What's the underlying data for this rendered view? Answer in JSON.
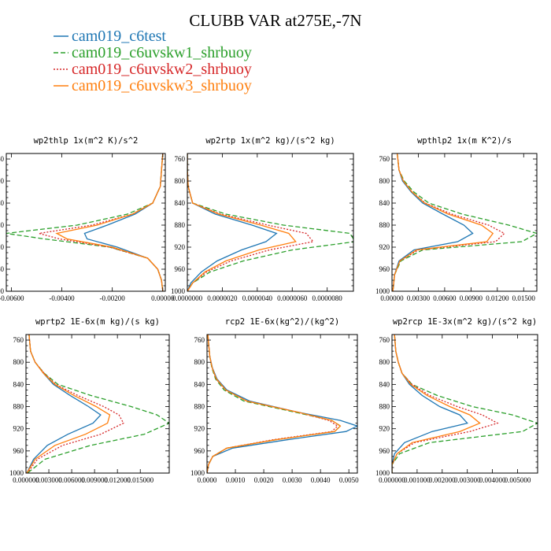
{
  "figure": {
    "title": "CLUBB VAR at275E,-7N",
    "legend": [
      {
        "label": "cam019_c6test",
        "color": "#1f77b4",
        "dash": "solid"
      },
      {
        "label": "cam019_c6uvskw1_shrbuoy",
        "color": "#2ca02c",
        "dash": "dashed"
      },
      {
        "label": "cam019_c6uvskw2_shrbuoy",
        "color": "#d62728",
        "dash": "dotted"
      },
      {
        "label": "cam019_c6uvskw3_shrbuoy",
        "color": "#ff7f0e",
        "dash": "solid"
      }
    ]
  },
  "chart_data": [
    {
      "type": "line",
      "title": "wp2thlp  1x(m^2 K)/s^2",
      "xlim": [
        -0.0062,
        0.0001
      ],
      "ylim": [
        1000,
        750
      ],
      "y_ticks": [
        760,
        800,
        840,
        880,
        920,
        960,
        1000
      ],
      "y_tick_labels": [
        "760",
        "800",
        "840",
        "880",
        "920",
        "960",
        "1000"
      ],
      "x_ticks": [
        -0.006,
        -0.004,
        -0.002,
        0.0
      ],
      "x_tick_labels": [
        "-0.00600",
        "-0.00400",
        "-0.00200",
        "0.00000"
      ],
      "y": [
        750,
        780,
        810,
        840,
        860,
        880,
        895,
        905,
        920,
        940,
        960,
        980,
        1000
      ],
      "series": [
        {
          "x": [
            0.0,
            -5e-05,
            -0.0001,
            -0.0004,
            -0.0011,
            -0.0022,
            -0.0031,
            -0.003,
            -0.0018,
            -0.0006,
            -0.0002,
            -5e-05,
            0.0
          ]
        },
        {
          "x": [
            0.0,
            -5e-05,
            -0.0001,
            -0.0004,
            -0.0014,
            -0.0034,
            -0.0062,
            -0.0047,
            -0.0021,
            -0.0006,
            -0.0002,
            -5e-05,
            0.0
          ]
        },
        {
          "x": [
            0.0,
            -5e-05,
            -0.0001,
            -0.0004,
            -0.0012,
            -0.0028,
            -0.0049,
            -0.0041,
            -0.0021,
            -0.0006,
            -0.0002,
            -5e-05,
            0.0
          ]
        },
        {
          "x": [
            0.0,
            -5e-05,
            -0.0001,
            -0.0004,
            -0.0012,
            -0.0026,
            -0.0042,
            -0.0038,
            -0.002,
            -0.0006,
            -0.0002,
            -5e-05,
            0.0
          ]
        }
      ]
    },
    {
      "type": "line",
      "title": "wp2rtp  1x(m^2 kg)/(s^2 kg)",
      "xlim": [
        0.0,
        9.5e-06
      ],
      "ylim": [
        1000,
        750
      ],
      "y_ticks": [
        760,
        800,
        840,
        880,
        920,
        960,
        1000
      ],
      "y_tick_labels": [
        "760",
        "800",
        "840",
        "880",
        "920",
        "960",
        "1000"
      ],
      "x_ticks": [
        0.0,
        2e-06,
        4e-06,
        6e-06,
        8e-06
      ],
      "x_tick_labels": [
        "0.0000000",
        "0.0000020",
        "0.0000040",
        "0.0000060",
        "0.0000080"
      ],
      "y": [
        750,
        780,
        810,
        840,
        860,
        880,
        895,
        910,
        925,
        945,
        965,
        985,
        1000
      ],
      "series": [
        {
          "x": [
            0.0,
            0.0,
            5e-08,
            3e-07,
            1.6e-06,
            3.7e-06,
            5.1e-06,
            4.5e-06,
            3.1e-06,
            1.7e-06,
            8e-07,
            2e-07,
            0.0
          ]
        },
        {
          "x": [
            0.0,
            0.0,
            5e-08,
            3e-07,
            2.2e-06,
            5.5e-06,
            9.3e-06,
            9.6e-06,
            6e-06,
            3.2e-06,
            1.3e-06,
            3e-07,
            0.0
          ]
        },
        {
          "x": [
            0.0,
            0.0,
            5e-08,
            3e-07,
            1.9e-06,
            4.6e-06,
            6.8e-06,
            7.2e-06,
            4.7e-06,
            2.5e-06,
            1.1e-06,
            3e-07,
            0.0
          ]
        },
        {
          "x": [
            0.0,
            0.0,
            5e-08,
            3e-07,
            1.8e-06,
            4.2e-06,
            5.8e-06,
            6.2e-06,
            4.1e-06,
            2.2e-06,
            1e-06,
            3e-07,
            0.0
          ]
        }
      ]
    },
    {
      "type": "line",
      "title": "wpthlp2  1x(m K^2)/s",
      "xlim": [
        0.0,
        0.0165
      ],
      "ylim": [
        1000,
        750
      ],
      "y_ticks": [
        760,
        800,
        840,
        880,
        920,
        960,
        1000
      ],
      "y_tick_labels": [
        "760",
        "800",
        "840",
        "880",
        "920",
        "960",
        "1000"
      ],
      "x_ticks": [
        0.0,
        0.003,
        0.006,
        0.009,
        0.012,
        0.015
      ],
      "x_tick_labels": [
        "0.00000",
        "0.00300",
        "0.00600",
        "0.00900",
        "0.01200",
        "0.01500"
      ],
      "y": [
        750,
        780,
        800,
        820,
        840,
        860,
        880,
        895,
        910,
        925,
        945,
        970,
        1000
      ],
      "series": [
        {
          "x": [
            0.0006,
            0.0008,
            0.0012,
            0.0022,
            0.0035,
            0.0058,
            0.0082,
            0.0092,
            0.0075,
            0.0025,
            0.0008,
            0.0003,
            0.0001
          ]
        },
        {
          "x": [
            0.0006,
            0.0008,
            0.0014,
            0.0025,
            0.0042,
            0.008,
            0.0133,
            0.0165,
            0.0148,
            0.0035,
            0.001,
            0.0003,
            0.0001
          ]
        },
        {
          "x": [
            0.0006,
            0.0008,
            0.0013,
            0.0023,
            0.0038,
            0.0068,
            0.011,
            0.0128,
            0.0118,
            0.003,
            0.0009,
            0.0003,
            0.0001
          ]
        },
        {
          "x": [
            0.0006,
            0.0008,
            0.0013,
            0.0023,
            0.0037,
            0.0064,
            0.0102,
            0.0115,
            0.0108,
            0.0028,
            0.0009,
            0.0003,
            0.0001
          ]
        }
      ]
    },
    {
      "type": "line",
      "title": "wprtp2  1E-6x(m kg)/(s kg)",
      "xlim": [
        0.0,
        0.0188
      ],
      "ylim": [
        1000,
        750
      ],
      "y_ticks": [
        760,
        800,
        840,
        880,
        920,
        960,
        1000
      ],
      "y_tick_labels": [
        "760",
        "800",
        "840",
        "880",
        "920",
        "960",
        "1000"
      ],
      "x_ticks": [
        0.0,
        0.003,
        0.006,
        0.009,
        0.012,
        0.015
      ],
      "x_tick_labels": [
        "0.000000",
        "0.003000",
        "0.006000",
        "0.009000",
        "0.012000",
        "0.015000"
      ],
      "y": [
        750,
        780,
        800,
        820,
        840,
        860,
        880,
        895,
        910,
        930,
        950,
        975,
        1000
      ],
      "series": [
        {
          "x": [
            0.0004,
            0.0006,
            0.0012,
            0.0023,
            0.0036,
            0.0058,
            0.0082,
            0.0098,
            0.0088,
            0.0055,
            0.0028,
            0.001,
            0.0001
          ]
        },
        {
          "x": [
            0.0004,
            0.0006,
            0.0012,
            0.0024,
            0.0042,
            0.0085,
            0.0138,
            0.0172,
            0.0188,
            0.0155,
            0.0085,
            0.0025,
            0.0002
          ]
        },
        {
          "x": [
            0.0004,
            0.0006,
            0.0012,
            0.0024,
            0.0039,
            0.0068,
            0.0102,
            0.0122,
            0.0128,
            0.0098,
            0.0048,
            0.0015,
            0.0002
          ]
        },
        {
          "x": [
            0.0004,
            0.0006,
            0.0012,
            0.0023,
            0.0038,
            0.0063,
            0.0092,
            0.011,
            0.0107,
            0.0078,
            0.0038,
            0.0012,
            0.0001
          ]
        }
      ]
    },
    {
      "type": "line",
      "title": "rcp2  1E-6x(kg^2)/(kg^2)",
      "xlim": [
        0.0,
        0.0053
      ],
      "ylim": [
        1000,
        750
      ],
      "y_ticks": [
        760,
        800,
        840,
        880,
        920,
        960,
        1000
      ],
      "y_tick_labels": [
        "760",
        "800",
        "840",
        "880",
        "920",
        "960",
        "1000"
      ],
      "x_ticks": [
        0.0,
        0.001,
        0.002,
        0.003,
        0.004,
        0.005
      ],
      "x_tick_labels": [
        "0.0000",
        "0.0010",
        "0.0020",
        "0.0030",
        "0.0040",
        "0.0050"
      ],
      "y": [
        750,
        770,
        790,
        810,
        830,
        850,
        870,
        890,
        905,
        915,
        925,
        940,
        955,
        970,
        985,
        1000
      ],
      "series": [
        {
          "x": [
            3e-05,
            6e-05,
            0.0001,
            0.00019,
            0.00035,
            0.0007,
            0.0015,
            0.0032,
            0.0047,
            0.0053,
            0.0049,
            0.0028,
            0.0009,
            0.0002,
            5e-05,
            0.0
          ]
        },
        {
          "x": [
            3e-05,
            6e-05,
            0.0001,
            0.00017,
            0.0003,
            0.0006,
            0.0013,
            0.0031,
            0.0044,
            0.0047,
            0.0045,
            0.0024,
            0.0007,
            0.0002,
            5e-05,
            0.0
          ]
        },
        {
          "x": [
            3e-05,
            6e-05,
            0.0001,
            0.00018,
            0.00032,
            0.00065,
            0.0014,
            0.0032,
            0.0043,
            0.0046,
            0.0044,
            0.0023,
            0.0007,
            0.0002,
            5e-05,
            0.0
          ]
        },
        {
          "x": [
            3e-05,
            6e-05,
            0.0001,
            0.00018,
            0.00033,
            0.00066,
            0.0014,
            0.0032,
            0.0044,
            0.0047,
            0.0045,
            0.0024,
            0.0007,
            0.0002,
            5e-05,
            0.0
          ]
        }
      ]
    },
    {
      "type": "line",
      "title": "wp2rcp  1E-3x(m^2 kg)/(s^2 kg)",
      "xlim": [
        0.0,
        0.0058
      ],
      "ylim": [
        1000,
        750
      ],
      "y_ticks": [
        760,
        800,
        840,
        880,
        920,
        960,
        1000
      ],
      "y_tick_labels": [
        "760",
        "800",
        "840",
        "880",
        "920",
        "960",
        "1000"
      ],
      "x_ticks": [
        0.0,
        0.001,
        0.002,
        0.003,
        0.004,
        0.005
      ],
      "x_tick_labels": [
        "0.000000",
        "0.001000",
        "0.002000",
        "0.003000",
        "0.004000",
        "0.005000"
      ],
      "y": [
        750,
        780,
        800,
        820,
        840,
        860,
        880,
        895,
        910,
        925,
        945,
        965,
        985,
        1000
      ],
      "series": [
        {
          "x": [
            0.0001,
            0.00015,
            0.00025,
            0.0004,
            0.0007,
            0.0012,
            0.0019,
            0.0027,
            0.003,
            0.0016,
            0.0005,
            0.0001,
            0.0,
            0.0
          ]
        },
        {
          "x": [
            0.0001,
            0.00015,
            0.00025,
            0.0004,
            0.0008,
            0.0018,
            0.0032,
            0.0048,
            0.0058,
            0.0052,
            0.0015,
            0.0003,
            0.0,
            0.0
          ]
        },
        {
          "x": [
            0.0001,
            0.00015,
            0.00025,
            0.0004,
            0.0008,
            0.0015,
            0.0026,
            0.0036,
            0.0042,
            0.0031,
            0.0009,
            0.0002,
            0.0,
            0.0
          ]
        },
        {
          "x": [
            0.0001,
            0.00015,
            0.00025,
            0.0004,
            0.00075,
            0.0014,
            0.0023,
            0.0031,
            0.0035,
            0.0027,
            0.0008,
            0.0002,
            0.0,
            0.0
          ]
        }
      ]
    }
  ]
}
